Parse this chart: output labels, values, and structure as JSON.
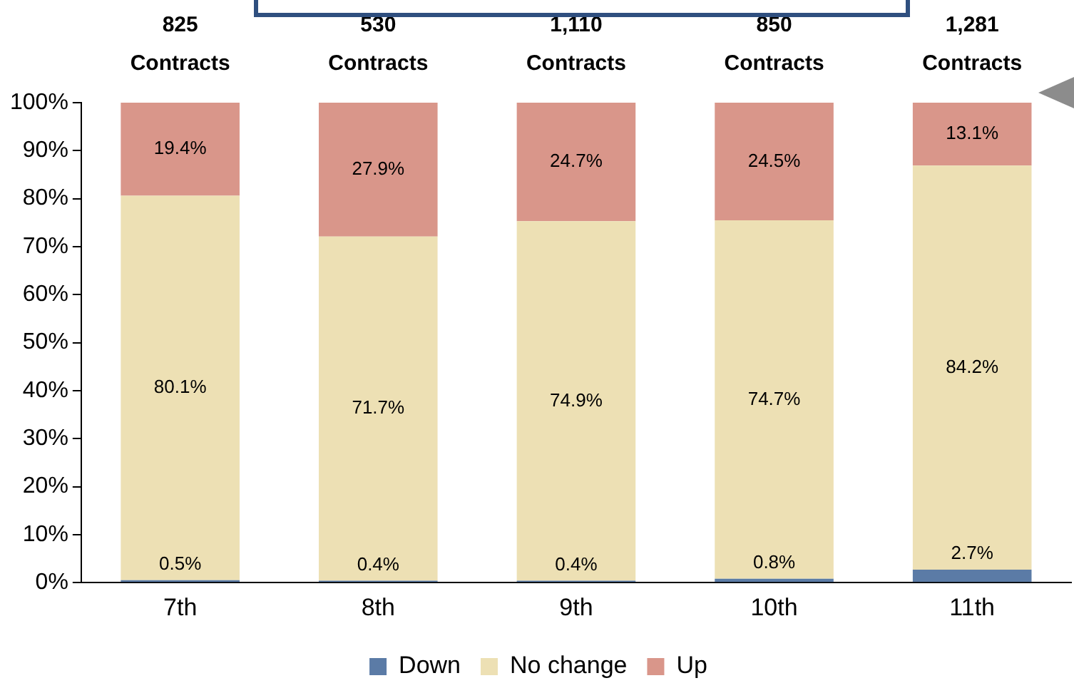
{
  "chart_data": {
    "type": "bar",
    "stacked": true,
    "categories": [
      "7th",
      "8th",
      "9th",
      "10th",
      "11th"
    ],
    "series": [
      {
        "name": "Down",
        "color": "#5b7ba6",
        "values": [
          0.5,
          0.4,
          0.4,
          0.8,
          2.7
        ],
        "value_labels": [
          "0.5%",
          "0.4%",
          "0.4%",
          "0.8%",
          "2.7%"
        ]
      },
      {
        "name": "No change",
        "color": "#ede0b4",
        "values": [
          80.1,
          71.7,
          74.9,
          74.7,
          84.2
        ],
        "value_labels": [
          "80.1%",
          "71.7%",
          "74.9%",
          "74.7%",
          "84.2%"
        ]
      },
      {
        "name": "Up",
        "color": "#d9968a",
        "values": [
          19.4,
          27.9,
          24.7,
          24.5,
          13.1
        ],
        "value_labels": [
          "19.4%",
          "27.9%",
          "24.7%",
          "24.5%",
          "13.1%"
        ]
      }
    ],
    "annotations": [
      {
        "text": "825 Contracts",
        "x": "7th",
        "y": 100
      },
      {
        "text": "530 Contracts",
        "x": "8th",
        "y": 100
      },
      {
        "text": "1,110 Contracts",
        "x": "9th",
        "y": 100
      },
      {
        "text": "850 Contracts",
        "x": "10th",
        "y": 100
      },
      {
        "text": "1,281 Contracts",
        "x": "11th",
        "y": 100
      }
    ],
    "ylim": [
      0,
      100
    ],
    "yticks": [
      {
        "value": 0,
        "label": "0%"
      },
      {
        "value": 10,
        "label": "10%"
      },
      {
        "value": 20,
        "label": "20%"
      },
      {
        "value": 30,
        "label": "30%"
      },
      {
        "value": 40,
        "label": "40%"
      },
      {
        "value": 50,
        "label": "50%"
      },
      {
        "value": 60,
        "label": "60%"
      },
      {
        "value": 70,
        "label": "70%"
      },
      {
        "value": 80,
        "label": "80%"
      },
      {
        "value": 90,
        "label": "90%"
      },
      {
        "value": 100,
        "label": "100%"
      }
    ],
    "grid": false,
    "legend": "bottom"
  }
}
